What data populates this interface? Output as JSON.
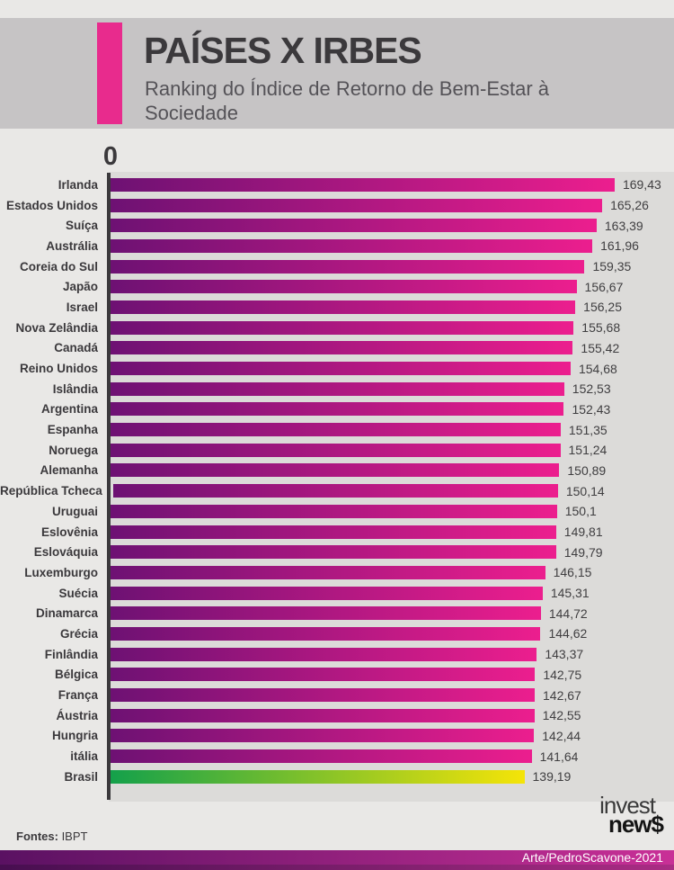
{
  "header": {
    "title": "PAÍSES X IRBES",
    "subtitle": "Ranking do Índice de Retorno de Bem-Estar à Sociedade",
    "accent_color": "#e82b8d"
  },
  "chart_data": {
    "type": "bar",
    "orientation": "horizontal",
    "title": "PAÍSES X IRBES",
    "subtitle": "Ranking do Índice de Retorno de Bem-Estar à Sociedade",
    "xlabel": "",
    "ylabel": "",
    "xlim": [
      0,
      175
    ],
    "axis_zero_label": "0",
    "grid": false,
    "legend": false,
    "bar_gradient": [
      "#6d1173",
      "#ec1e8e"
    ],
    "highlight_category": "Brasil",
    "highlight_gradient": [
      "#13a04b",
      "#f5e408"
    ],
    "categories": [
      "Irlanda",
      "Estados Unidos",
      "Suíça",
      "Austrália",
      "Coreia do Sul",
      "Japão",
      "Israel",
      "Nova Zelândia",
      "Canadá",
      "Reino Unidos",
      "Islândia",
      "Argentina",
      "Espanha",
      "Noruega",
      "Alemanha",
      "República Tcheca",
      "Uruguai",
      "Eslovênia",
      "Eslováquia",
      "Luxemburgo",
      "Suécia",
      "Dinamarca",
      "Grécia",
      "Finlândia",
      "Bélgica",
      "França",
      "Áustria",
      "Hungria",
      "itália",
      "Brasil"
    ],
    "values": [
      169.43,
      165.26,
      163.39,
      161.96,
      159.35,
      156.67,
      156.25,
      155.68,
      155.42,
      154.68,
      152.53,
      152.43,
      151.35,
      151.24,
      150.89,
      150.14,
      150.1,
      149.81,
      149.79,
      146.15,
      145.31,
      144.72,
      144.62,
      143.37,
      142.75,
      142.67,
      142.55,
      142.44,
      141.64,
      139.19
    ],
    "value_labels": [
      "169,43",
      "165,26",
      "163,39",
      "161,96",
      "159,35",
      "156,67",
      "156,25",
      "155,68",
      "155,42",
      "154,68",
      "152,53",
      "152,43",
      "151,35",
      "151,24",
      "150,89",
      "150,14",
      "150,1",
      "149,81",
      "149,79",
      "146,15",
      "145,31",
      "144,72",
      "144,62",
      "143,37",
      "142,75",
      "142,67",
      "142,55",
      "142,44",
      "141,64",
      "139,19"
    ]
  },
  "footer": {
    "sources_label": "Fontes:",
    "sources_value": " IBPT",
    "logo_line1": "invest",
    "logo_line2": "new$",
    "credit": "Arte/PedroScavone-2021",
    "credit_band_gradient": [
      "#5a1162",
      "#c93097"
    ],
    "credit_band_bottom_gradient": [
      "#470e50",
      "#aa2d84"
    ]
  }
}
